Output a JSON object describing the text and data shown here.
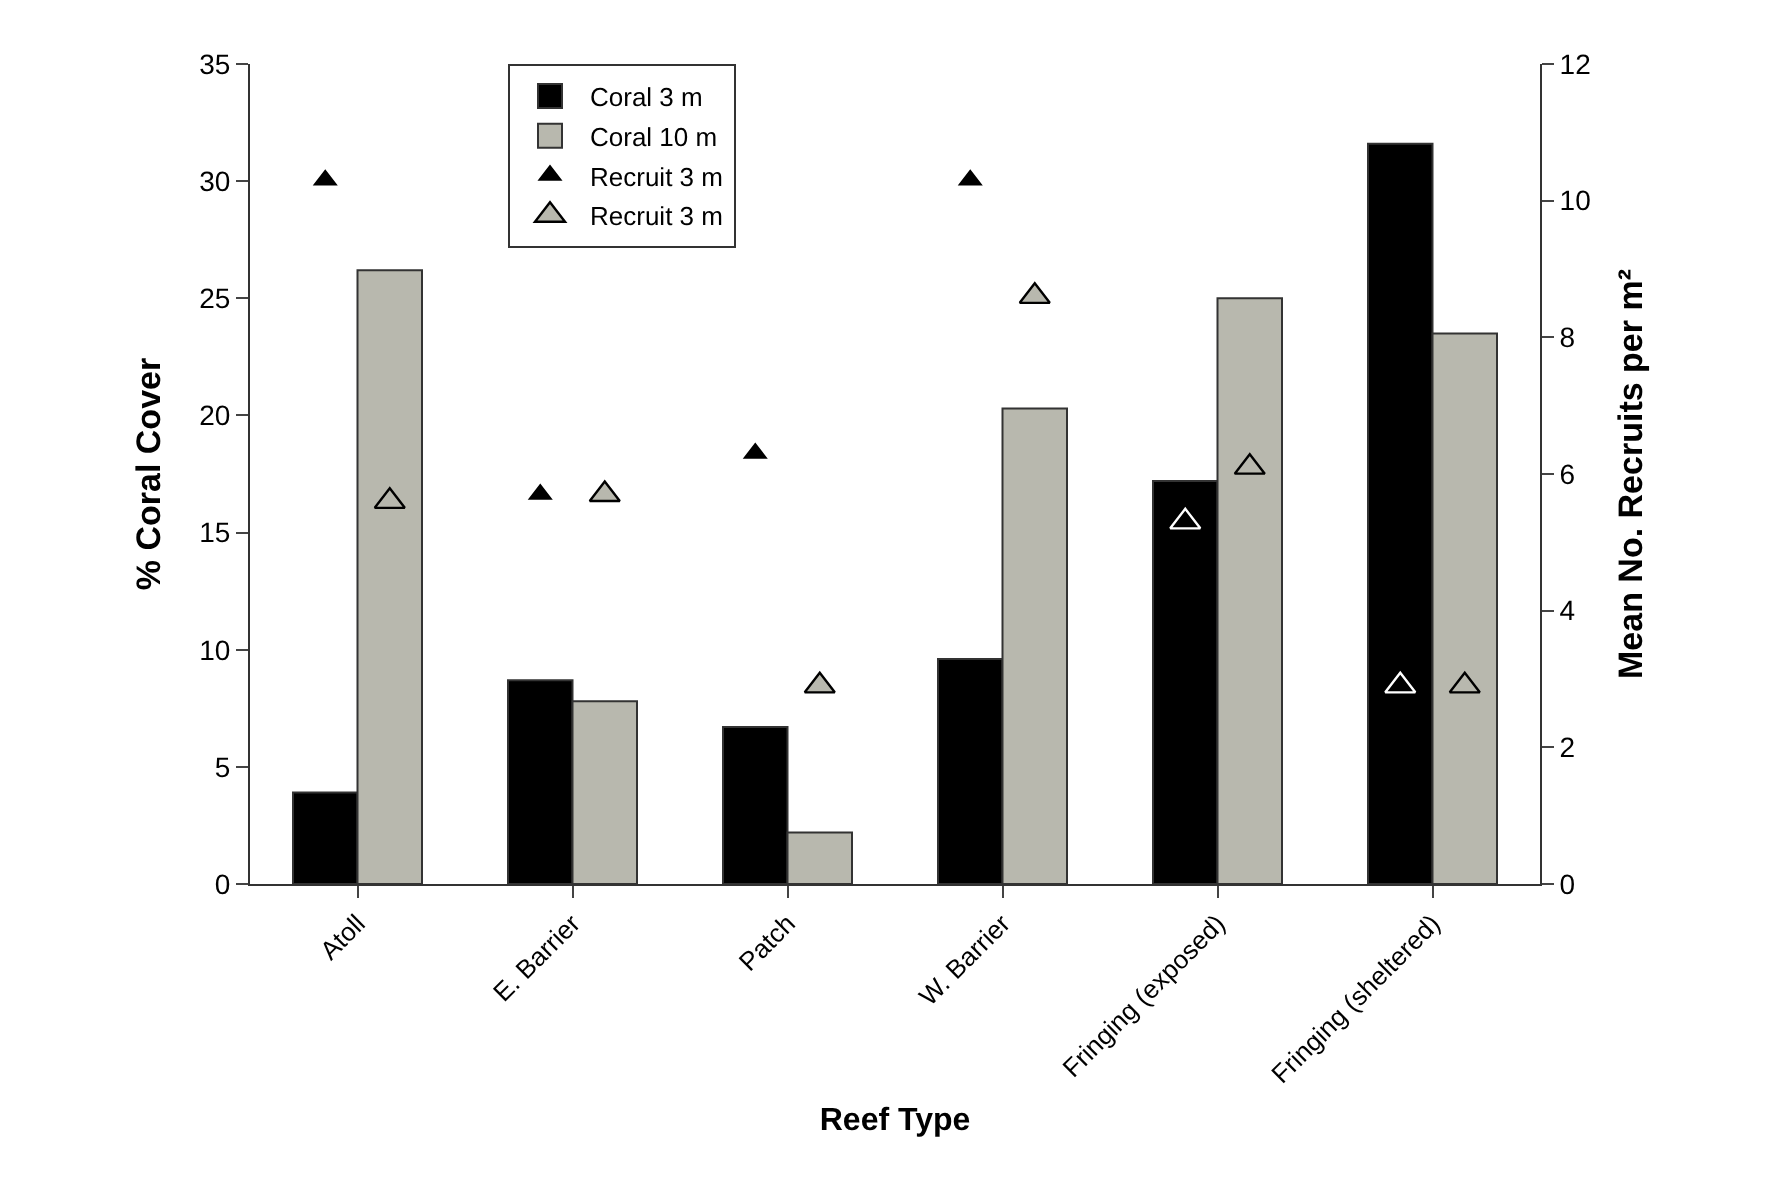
{
  "chart_data": {
    "type": "bar",
    "xlabel": "Reef Type",
    "ylabel": "% Coral Cover",
    "y2label": "Mean No. Recruits per m²",
    "categories": [
      "Atoll",
      "E. Barrier",
      "Patch",
      "W. Barrier",
      "Fringing (exposed)",
      "Fringing (sheltered)"
    ],
    "series": [
      {
        "name": "Coral 3 m",
        "color": "#000000",
        "values": [
          3.9,
          8.7,
          6.7,
          9.6,
          17.2,
          31.6
        ]
      },
      {
        "name": "Coral 10 m",
        "color": "#b8b8ae",
        "values": [
          26.2,
          7.8,
          2.2,
          20.3,
          25.0,
          23.5
        ]
      },
      {
        "name": "Recruit 3 m",
        "type": "scatter",
        "axis": "y2",
        "color": "#000000",
        "values": [
          10.3,
          5.7,
          6.3,
          10.3,
          5.3,
          2.9
        ]
      },
      {
        "name": "Recruit 3 m",
        "type": "scatter",
        "axis": "y2",
        "color": "#b8b8ae",
        "values": [
          5.6,
          5.7,
          2.9,
          8.6,
          6.1,
          2.9
        ]
      }
    ],
    "ylim": [
      0,
      35
    ],
    "yticks": [
      0,
      5,
      10,
      15,
      20,
      25,
      30,
      35
    ],
    "y2lim": [
      0,
      12
    ],
    "y2ticks": [
      0,
      2,
      4,
      6,
      8,
      10,
      12
    ],
    "marker": "triangle",
    "grid": false,
    "legend": "top left"
  }
}
